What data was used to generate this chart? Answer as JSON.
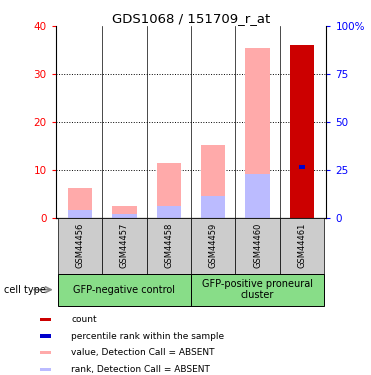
{
  "title": "GDS1068 / 151709_r_at",
  "samples": [
    "GSM44456",
    "GSM44457",
    "GSM44458",
    "GSM44459",
    "GSM44460",
    "GSM44461"
  ],
  "value_absent": [
    6.2,
    2.5,
    11.5,
    15.2,
    35.5,
    0.0
  ],
  "rank_absent": [
    1.5,
    0.8,
    2.5,
    4.5,
    9.2,
    0.0
  ],
  "count": [
    0,
    0,
    0,
    0,
    0,
    36
  ],
  "percentile": [
    0,
    0,
    0,
    0,
    0,
    10.5
  ],
  "ylim_left": [
    0,
    40
  ],
  "ylim_right": [
    0,
    100
  ],
  "yticks_left": [
    0,
    10,
    20,
    30,
    40
  ],
  "ytick_labels_left": [
    "0",
    "10",
    "20",
    "30",
    "40"
  ],
  "yticks_right": [
    0,
    25,
    50,
    75,
    100
  ],
  "ytick_labels_right": [
    "0",
    "25",
    "50",
    "75",
    "100%"
  ],
  "group1_label": "GFP-negative control",
  "group2_label": "GFP-positive proneural\ncluster",
  "group1_samples": [
    0,
    1,
    2
  ],
  "group2_samples": [
    3,
    4,
    5
  ],
  "color_count": "#cc0000",
  "color_percentile": "#0000cc",
  "color_value_absent": "#ffaaaa",
  "color_rank_absent": "#bbbbff",
  "group_bg": "#88dd88",
  "label_bg": "#cccccc",
  "cell_type_label": "cell type",
  "legend_items": [
    {
      "label": "count",
      "color": "#cc0000"
    },
    {
      "label": "percentile rank within the sample",
      "color": "#0000cc"
    },
    {
      "label": "value, Detection Call = ABSENT",
      "color": "#ffaaaa"
    },
    {
      "label": "rank, Detection Call = ABSENT",
      "color": "#bbbbff"
    }
  ]
}
